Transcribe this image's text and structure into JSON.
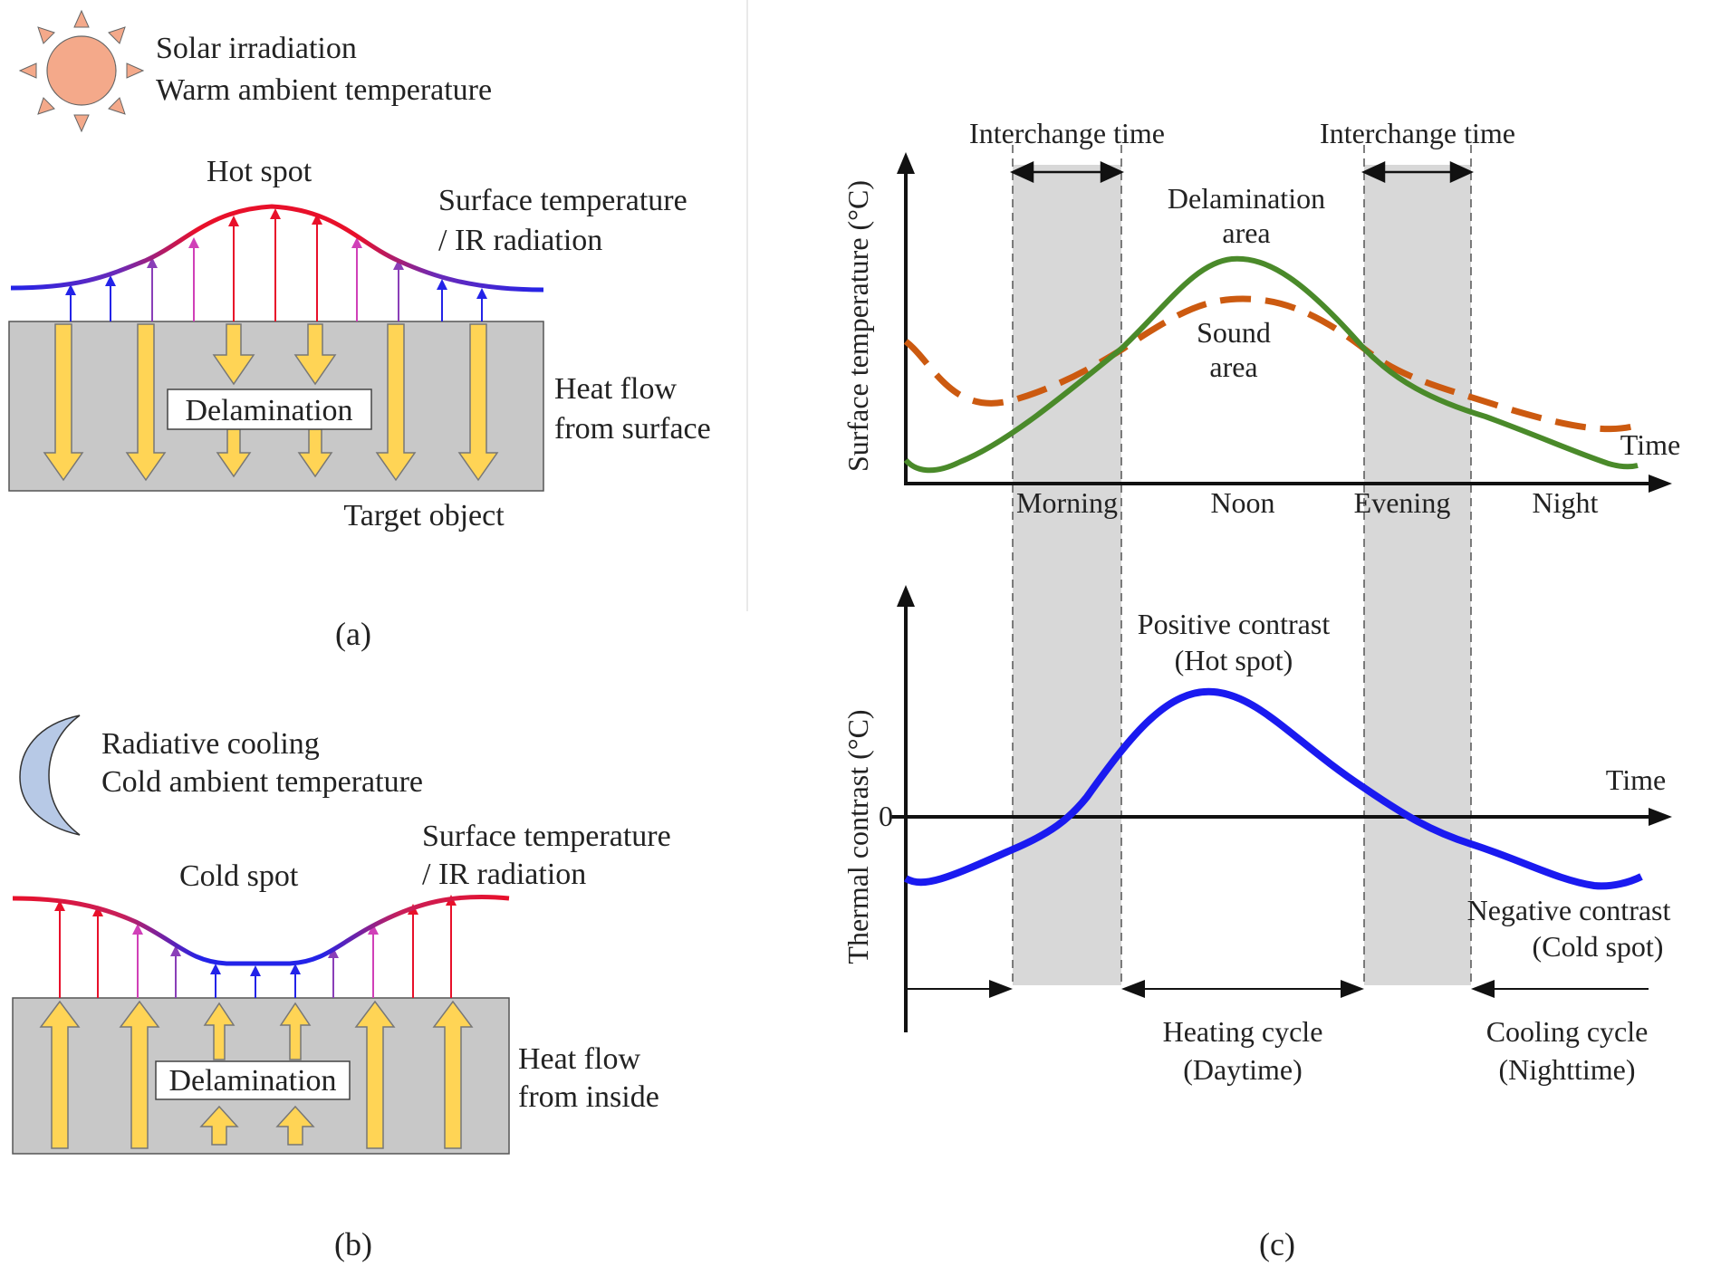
{
  "panel_a": {
    "caption": "(a)",
    "env_line1": "Solar irradiation",
    "env_line2": "Warm ambient temperature",
    "spot_label": "Hot spot",
    "surface_line1": "Surface temperature",
    "surface_line2": "/ IR radiation",
    "defect_label": "Delamination",
    "heat_line1": "Heat flow",
    "heat_line2": "from surface",
    "object_label": "Target object"
  },
  "panel_b": {
    "caption": "(b)",
    "env_line1": "Radiative cooling",
    "env_line2": "Cold ambient temperature",
    "spot_label": "Cold spot",
    "surface_line1": "Surface   temperature",
    "surface_line2": "/ IR radiation",
    "defect_label": "Delamination",
    "heat_line1": "Heat flow",
    "heat_line2": "from inside"
  },
  "panel_c": {
    "caption": "(c)",
    "interchange_label": "Interchange time",
    "top_chart": {
      "ylabel": "Surface temperature (°C)",
      "xlabel": "Time",
      "periods": [
        "Morning",
        "Noon",
        "Evening",
        "Night"
      ],
      "delam_line1": "Delamination",
      "delam_line2": "area",
      "sound_line1": "Sound",
      "sound_line2": "area"
    },
    "bottom_chart": {
      "ylabel": "Thermal contrast (°C)",
      "xlabel": "Time",
      "zero_label": "0",
      "positive_line1": "Positive contrast",
      "positive_line2": "(Hot spot)",
      "negative_line1": "Negative contrast",
      "negative_line2": "(Cold spot)",
      "heating_line1": "Heating cycle",
      "heating_line2": "(Daytime)",
      "cooling_line1": "Cooling cycle",
      "cooling_line2": "(Nighttime)"
    }
  },
  "colors": {
    "hot": "#e8102a",
    "cold": "#2323e8",
    "delam_curve": "#4a8a2a",
    "sound_curve": "#cc5a10",
    "contrast_curve": "#1a1af0",
    "heat_arrow": "#ffd455",
    "object_fill": "#c8c8c8",
    "band_fill": "#d8d8d8",
    "sun_fill": "#f4a98a",
    "moon_fill": "#b7c9e6"
  },
  "chart_data": [
    {
      "type": "line",
      "title": "",
      "xlabel": "Time",
      "ylabel": "Surface temperature (°C)",
      "categories": [
        "Morning",
        "Noon",
        "Evening",
        "Night"
      ],
      "series": [
        {
          "name": "Delamination area",
          "style": "solid",
          "x": [
            0.0,
            0.2,
            0.4,
            0.47,
            0.6,
            0.8,
            1.0
          ],
          "values": [
            0.05,
            0.25,
            0.8,
            0.92,
            0.48,
            0.25,
            0.05
          ]
        },
        {
          "name": "Sound area",
          "style": "dashed",
          "x": [
            0.0,
            0.2,
            0.4,
            0.47,
            0.6,
            0.8,
            1.0
          ],
          "values": [
            0.2,
            0.35,
            0.69,
            0.77,
            0.5,
            0.35,
            0.2
          ]
        }
      ],
      "ylim": [
        0,
        1
      ],
      "grid": false
    },
    {
      "type": "line",
      "title": "",
      "xlabel": "Time",
      "ylabel": "Thermal contrast (°C)",
      "series": [
        {
          "name": "Thermal contrast",
          "x": [
            0.0,
            0.23,
            0.43,
            0.66,
            0.94,
            1.0
          ],
          "values": [
            -0.5,
            0.0,
            0.95,
            0.0,
            -0.5,
            -0.45
          ]
        }
      ],
      "ylim": [
        -1.3,
        1.3
      ],
      "grid": false
    }
  ]
}
